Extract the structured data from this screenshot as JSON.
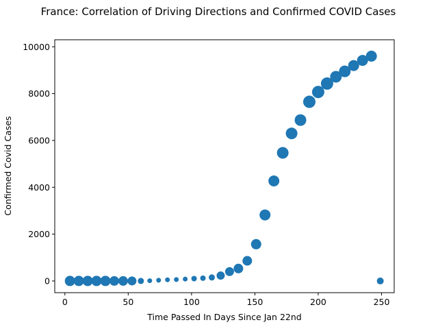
{
  "chart_data": {
    "type": "scatter",
    "title": "France: Correlation of Driving Directions and Confirmed COVID Cases",
    "xlabel": "Time Passed In Days Since Jan 22nd",
    "ylabel": "Confirmed Covid Cases",
    "xlim": [
      -8,
      260
    ],
    "ylim": [
      -500,
      10300
    ],
    "xticks": [
      0,
      50,
      100,
      150,
      200,
      250
    ],
    "yticks": [
      0,
      2000,
      4000,
      6000,
      8000,
      10000
    ],
    "grid": false,
    "point_color": "#1f77b4",
    "points": [
      {
        "x": 4,
        "y": 0,
        "size": 7.5
      },
      {
        "x": 11,
        "y": 0,
        "size": 7.5
      },
      {
        "x": 18,
        "y": 0,
        "size": 7.5
      },
      {
        "x": 25,
        "y": 0,
        "size": 7.5
      },
      {
        "x": 32,
        "y": 0,
        "size": 7.5
      },
      {
        "x": 39,
        "y": 0,
        "size": 7
      },
      {
        "x": 46,
        "y": 0,
        "size": 7
      },
      {
        "x": 53,
        "y": 0,
        "size": 6.5
      },
      {
        "x": 60,
        "y": 0,
        "size": 4.5
      },
      {
        "x": 67,
        "y": 10,
        "size": 3.5
      },
      {
        "x": 74,
        "y": 30,
        "size": 3.5
      },
      {
        "x": 81,
        "y": 50,
        "size": 3.5
      },
      {
        "x": 88,
        "y": 60,
        "size": 3.5
      },
      {
        "x": 95,
        "y": 80,
        "size": 3.5
      },
      {
        "x": 102,
        "y": 100,
        "size": 4
      },
      {
        "x": 109,
        "y": 120,
        "size": 4
      },
      {
        "x": 116,
        "y": 150,
        "size": 4.5
      },
      {
        "x": 123,
        "y": 230,
        "size": 6
      },
      {
        "x": 130,
        "y": 400,
        "size": 6.5
      },
      {
        "x": 137,
        "y": 530,
        "size": 7
      },
      {
        "x": 144,
        "y": 860,
        "size": 7
      },
      {
        "x": 151,
        "y": 1570,
        "size": 7.5
      },
      {
        "x": 158,
        "y": 2820,
        "size": 8
      },
      {
        "x": 165,
        "y": 4270,
        "size": 8
      },
      {
        "x": 172,
        "y": 5470,
        "size": 8.5
      },
      {
        "x": 179,
        "y": 6300,
        "size": 8.5
      },
      {
        "x": 186,
        "y": 6870,
        "size": 8.5
      },
      {
        "x": 193,
        "y": 7650,
        "size": 9
      },
      {
        "x": 200,
        "y": 8070,
        "size": 9
      },
      {
        "x": 207,
        "y": 8430,
        "size": 9
      },
      {
        "x": 214,
        "y": 8720,
        "size": 8.5
      },
      {
        "x": 221,
        "y": 8950,
        "size": 8.5
      },
      {
        "x": 228,
        "y": 9200,
        "size": 8
      },
      {
        "x": 235,
        "y": 9420,
        "size": 8
      },
      {
        "x": 242,
        "y": 9600,
        "size": 8
      },
      {
        "x": 249,
        "y": 0,
        "size": 5
      }
    ]
  }
}
